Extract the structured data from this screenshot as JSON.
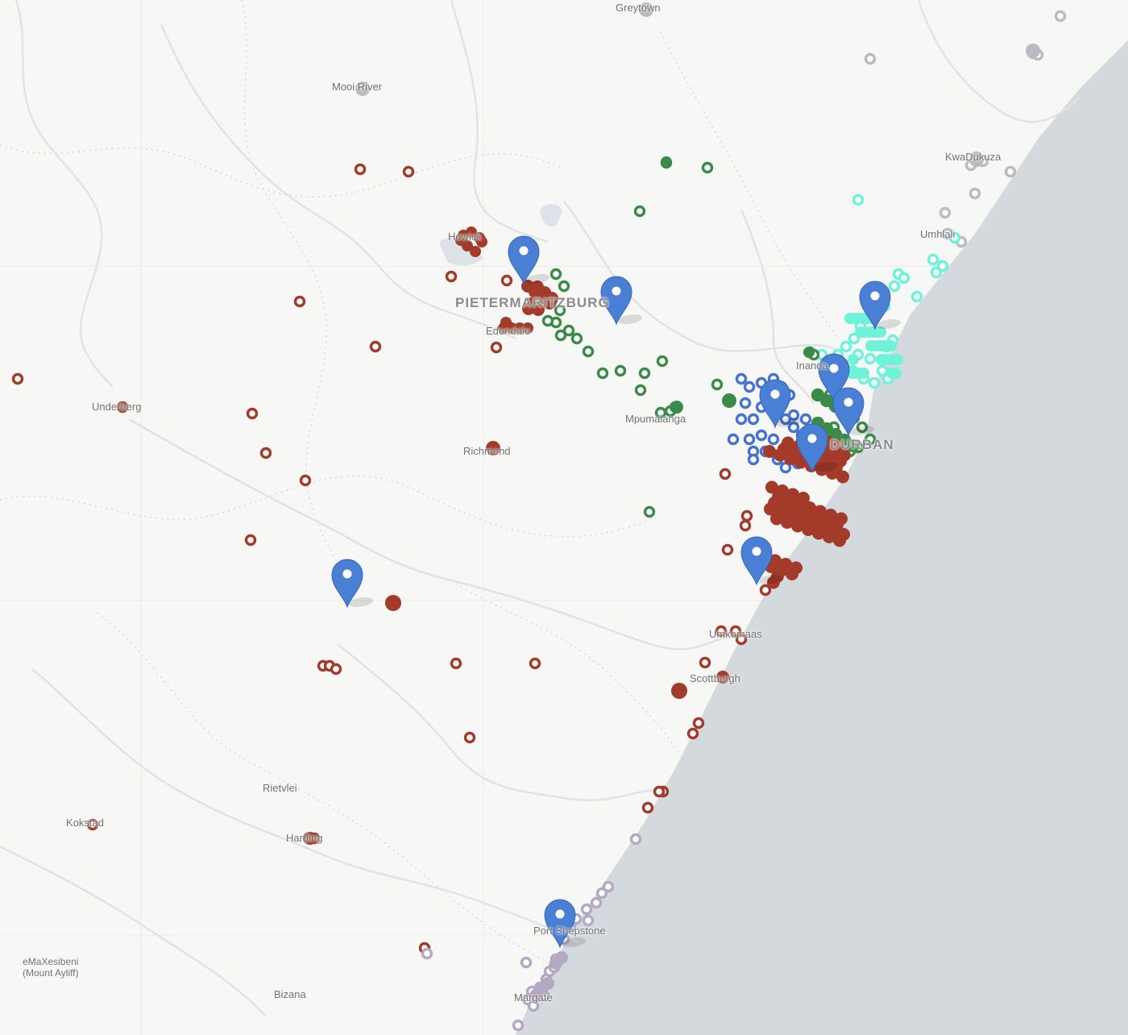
{
  "map": {
    "colors": {
      "land": "#f7f7f6",
      "ocean": "#d4d9de",
      "river": "#dfe3e8",
      "border": "#cfcfcf",
      "red": "#a33a2a",
      "green": "#3a8a48",
      "blue": "#4672d4",
      "cyan": "#6ef2d8",
      "lavender": "#b4a8c2",
      "gray": "#bdb9c0",
      "pin": "#4a7fd6"
    },
    "places": [
      {
        "name": "Greytown"
      },
      {
        "name": "Mooi River"
      },
      {
        "name": "KwaDukuza"
      },
      {
        "name": "Umhlali"
      },
      {
        "name": "Howick"
      },
      {
        "name": "PIETERMARITZBURG"
      },
      {
        "name": "Edendale"
      },
      {
        "name": "Underberg"
      },
      {
        "name": "Richmond"
      },
      {
        "name": "Mpumalanga"
      },
      {
        "name": "Inanda"
      },
      {
        "name": "DURBAN"
      },
      {
        "name": "Umkomaas"
      },
      {
        "name": "Scottburgh"
      },
      {
        "name": "Rietvlei"
      },
      {
        "name": "Kokstad"
      },
      {
        "name": "Harding"
      },
      {
        "name": "Port Shepstone"
      },
      {
        "name": "eMaXesibeni\n(Mount Ayliff)"
      },
      {
        "name": "Bizana"
      },
      {
        "name": "Margate"
      }
    ]
  }
}
